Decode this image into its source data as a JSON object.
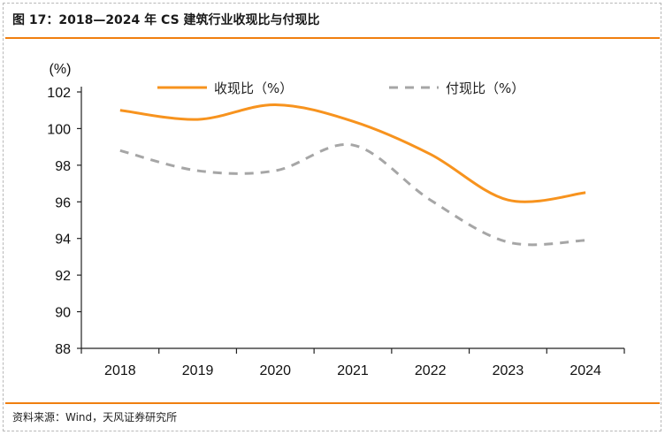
{
  "header": {
    "title": "图 17：2018—2024 年 CS 建筑行业收现比与付现比"
  },
  "footer": {
    "source": "资料来源：Wind，天风证券研究所"
  },
  "colors": {
    "accent": "#f07f0f",
    "series_1": "#f7931e",
    "series_2": "#a6a6a6"
  },
  "chart_data": {
    "type": "line",
    "x": [
      "2018",
      "2019",
      "2020",
      "2021",
      "2022",
      "2023",
      "2024"
    ],
    "series": [
      {
        "name": "收现比（%）",
        "values": [
          101.0,
          100.5,
          101.3,
          100.4,
          98.6,
          96.1,
          96.5
        ]
      },
      {
        "name": "付现比（%）",
        "values": [
          98.8,
          97.7,
          97.7,
          99.1,
          96.1,
          93.8,
          93.9
        ]
      }
    ],
    "ylabel": "(%)",
    "ylim": [
      88,
      102
    ],
    "yticks": [
      88,
      90,
      92,
      94,
      96,
      98,
      100,
      102
    ],
    "grid": false,
    "legend_position": "top"
  }
}
